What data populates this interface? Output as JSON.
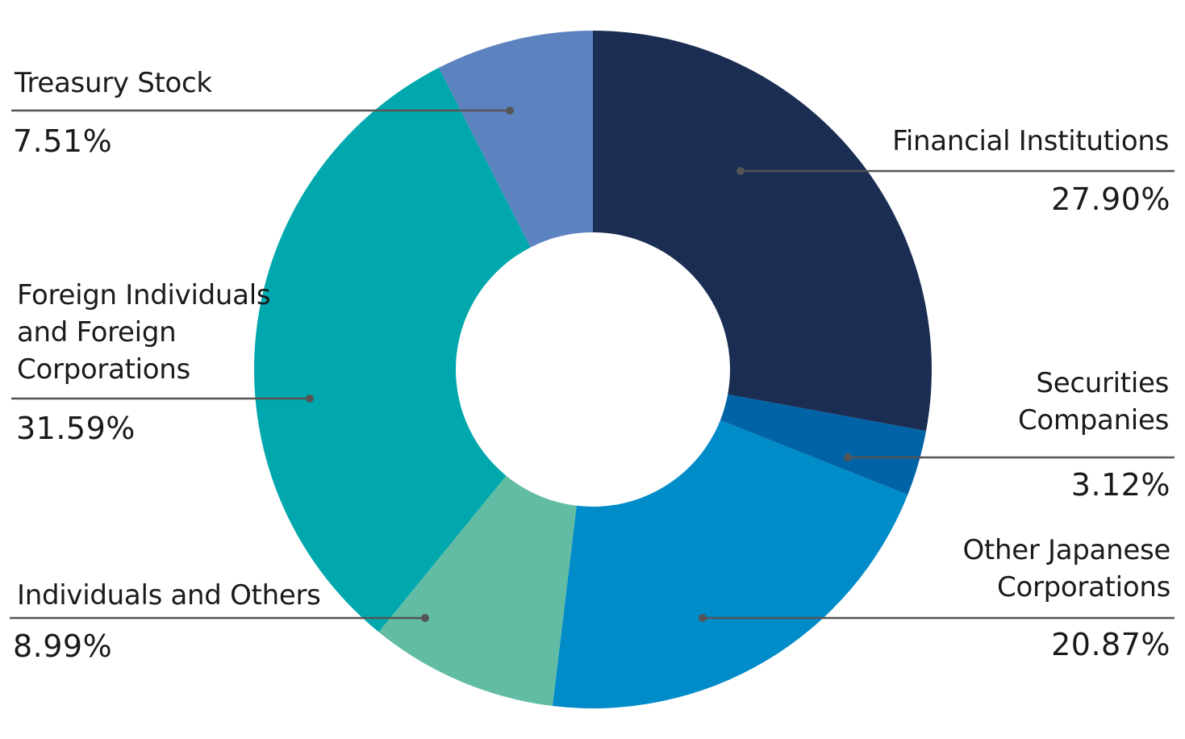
{
  "chart_data": {
    "type": "pie",
    "variant": "donut",
    "title": "",
    "start_angle": "12 o'clock, clockwise",
    "categories": [
      "Financial Institutions",
      "Securities Companies",
      "Other Japanese Corporations",
      "Individuals and Others",
      "Foreign Individuals and Foreign Corporations",
      "Treasury Stock"
    ],
    "values": [
      27.9,
      3.12,
      20.87,
      8.99,
      31.59,
      7.51
    ],
    "unit": "%",
    "colors": [
      "#1b2d53",
      "#0063a6",
      "#008bc9",
      "#62bca3",
      "#00a8ad",
      "#5d82c0"
    ],
    "legend": "callout labels with leader lines"
  },
  "labels": {
    "financial": {
      "name": "Financial Institutions",
      "pct": "27.90%"
    },
    "securities": {
      "name": "Securities\nCompanies",
      "pct": "3.12%"
    },
    "other_jp": {
      "name": "Other Japanese\nCorporations",
      "pct": "20.87%"
    },
    "individuals": {
      "name": "Individuals and Others",
      "pct": "8.99%"
    },
    "foreign": {
      "name": "Foreign Individuals\nand Foreign\nCorporations",
      "pct": "31.59%"
    },
    "treasury": {
      "name": "Treasury Stock",
      "pct": "7.51%"
    }
  },
  "style": {
    "leader_color": "#555555",
    "background": "#ffffff"
  }
}
